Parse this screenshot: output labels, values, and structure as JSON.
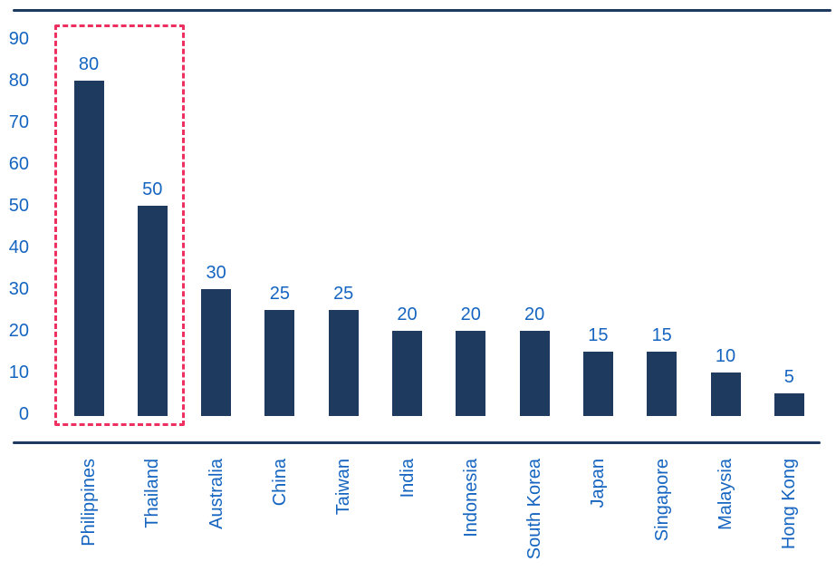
{
  "chart_data": {
    "type": "bar",
    "title": "",
    "xlabel": "",
    "ylabel": "",
    "categories": [
      "Philippines",
      "Thailand",
      "Australia",
      "China",
      "Taiwan",
      "India",
      "Indonesia",
      "South Korea",
      "Japan",
      "Singapore",
      "Malaysia",
      "Hong Kong"
    ],
    "values": [
      80,
      50,
      30,
      25,
      25,
      20,
      20,
      20,
      15,
      15,
      10,
      5
    ],
    "value_labels": [
      "80",
      "50",
      "30",
      "25",
      "25",
      "20",
      "20",
      "20",
      "15",
      "15",
      "10",
      "5"
    ],
    "yticks": [
      0,
      10,
      20,
      30,
      40,
      50,
      60,
      70,
      80,
      90
    ],
    "ylim": [
      0,
      90
    ],
    "grid": false,
    "legend_position": "none",
    "bar_orientation": "vertical",
    "x_tick_label_rotation": 90,
    "highlight": {
      "categories": [
        "Philippines",
        "Thailand"
      ],
      "style": "dashed-outline"
    },
    "colors": {
      "bar": "#1E3A5E",
      "rule": "#1E3A5E",
      "label": "#1565C0",
      "highlight": "#EE3060",
      "background": "#FFFFFF"
    }
  }
}
